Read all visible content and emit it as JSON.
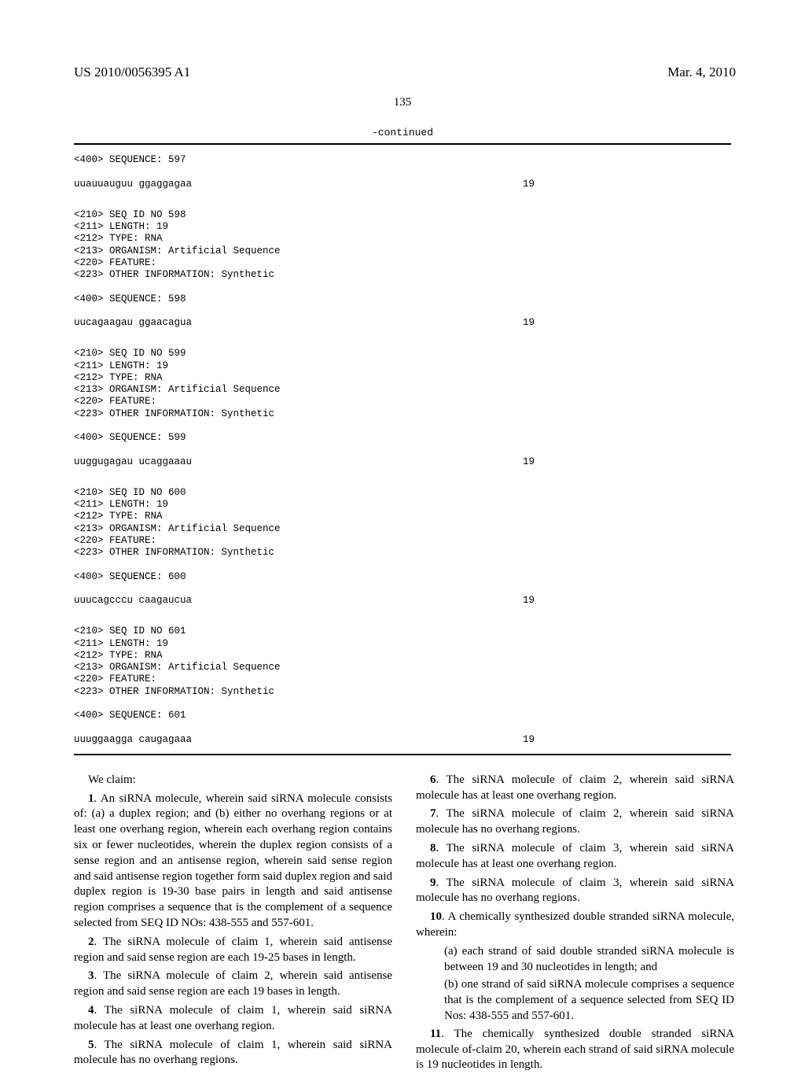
{
  "header": {
    "publication_number": "US 2010/0056395 A1",
    "date": "Mar. 4, 2010"
  },
  "page_number": "135",
  "continued_label": "-continued",
  "sequences": [
    {
      "header_lines": [
        "<400> SEQUENCE: 597"
      ],
      "sequence": "uuauuauguu ggaggagaa",
      "length": "19",
      "top_gap": false
    },
    {
      "header_lines": [
        "<210> SEQ ID NO 598",
        "<211> LENGTH: 19",
        "<212> TYPE: RNA",
        "<213> ORGANISM: Artificial Sequence",
        "<220> FEATURE:",
        "<223> OTHER INFORMATION: Synthetic",
        "",
        "<400> SEQUENCE: 598"
      ],
      "sequence": "uucagaagau ggaacagua",
      "length": "19",
      "top_gap": true
    },
    {
      "header_lines": [
        "<210> SEQ ID NO 599",
        "<211> LENGTH: 19",
        "<212> TYPE: RNA",
        "<213> ORGANISM: Artificial Sequence",
        "<220> FEATURE:",
        "<223> OTHER INFORMATION: Synthetic",
        "",
        "<400> SEQUENCE: 599"
      ],
      "sequence": "uuggugagau ucaggaaau",
      "length": "19",
      "top_gap": true
    },
    {
      "header_lines": [
        "<210> SEQ ID NO 600",
        "<211> LENGTH: 19",
        "<212> TYPE: RNA",
        "<213> ORGANISM: Artificial Sequence",
        "<220> FEATURE:",
        "<223> OTHER INFORMATION: Synthetic",
        "",
        "<400> SEQUENCE: 600"
      ],
      "sequence": "uuucagcccu caagaucua",
      "length": "19",
      "top_gap": true
    },
    {
      "header_lines": [
        "<210> SEQ ID NO 601",
        "<211> LENGTH: 19",
        "<212> TYPE: RNA",
        "<213> ORGANISM: Artificial Sequence",
        "<220> FEATURE:",
        "<223> OTHER INFORMATION: Synthetic",
        "",
        "<400> SEQUENCE: 601"
      ],
      "sequence": "uuuggaagga caugagaaa",
      "length": "19",
      "top_gap": true
    }
  ],
  "claims": {
    "preamble": "We claim:",
    "items": [
      {
        "type": "claim",
        "num": "1",
        "text": ". An siRNA molecule, wherein said siRNA molecule consists of: (a) a duplex region; and (b) either no overhang regions or at least one overhang region, wherein each overhang region contains six or fewer nucleotides, wherein the duplex region consists of a sense region and an antisense region, wherein said sense region and said antisense region together form said duplex region and said duplex region is 19-30 base pairs in length and said antisense region comprises a sequence that is the complement of a sequence selected from SEQ ID NOs: 438-555 and 557-601."
      },
      {
        "type": "claim",
        "num": "2",
        "text": ". The siRNA molecule of claim 1, wherein said antisense region and said sense region are each 19-25 bases in length."
      },
      {
        "type": "claim",
        "num": "3",
        "text": ". The siRNA molecule of claim 2, wherein said antisense region and said sense region are each 19 bases in length."
      },
      {
        "type": "claim",
        "num": "4",
        "text": ". The siRNA molecule of claim 1, wherein said siRNA molecule has at least one overhang region."
      },
      {
        "type": "claim",
        "num": "5",
        "text": ". The siRNA molecule of claim 1, wherein said siRNA molecule has no overhang regions."
      },
      {
        "type": "claim",
        "num": "6",
        "text": ". The siRNA molecule of claim 2, wherein said siRNA molecule has at least one overhang region."
      },
      {
        "type": "claim",
        "num": "7",
        "text": ". The siRNA molecule of claim 2, wherein said siRNA molecule has no overhang regions."
      },
      {
        "type": "claim",
        "num": "8",
        "text": ". The siRNA molecule of claim 3, wherein said siRNA molecule has at least one overhang region."
      },
      {
        "type": "claim",
        "num": "9",
        "text": ". The siRNA molecule of claim 3, wherein said siRNA molecule has no overhang regions."
      },
      {
        "type": "claim",
        "num": "10",
        "text": ". A chemically synthesized double stranded siRNA molecule, wherein:"
      },
      {
        "type": "sub",
        "text": "(a) each strand of said double stranded siRNA molecule is between 19 and 30 nucleotides in length; and"
      },
      {
        "type": "sub",
        "text": "(b) one strand of said siRNA molecule comprises a sequence that is the complement of a sequence selected from SEQ ID Nos: 438-555 and 557-601."
      },
      {
        "type": "claim",
        "num": "11",
        "text": ". The chemically synthesized double stranded siRNA molecule of-claim 20, wherein each strand of said siRNA molecule is 19 nucleotides in length."
      }
    ]
  }
}
